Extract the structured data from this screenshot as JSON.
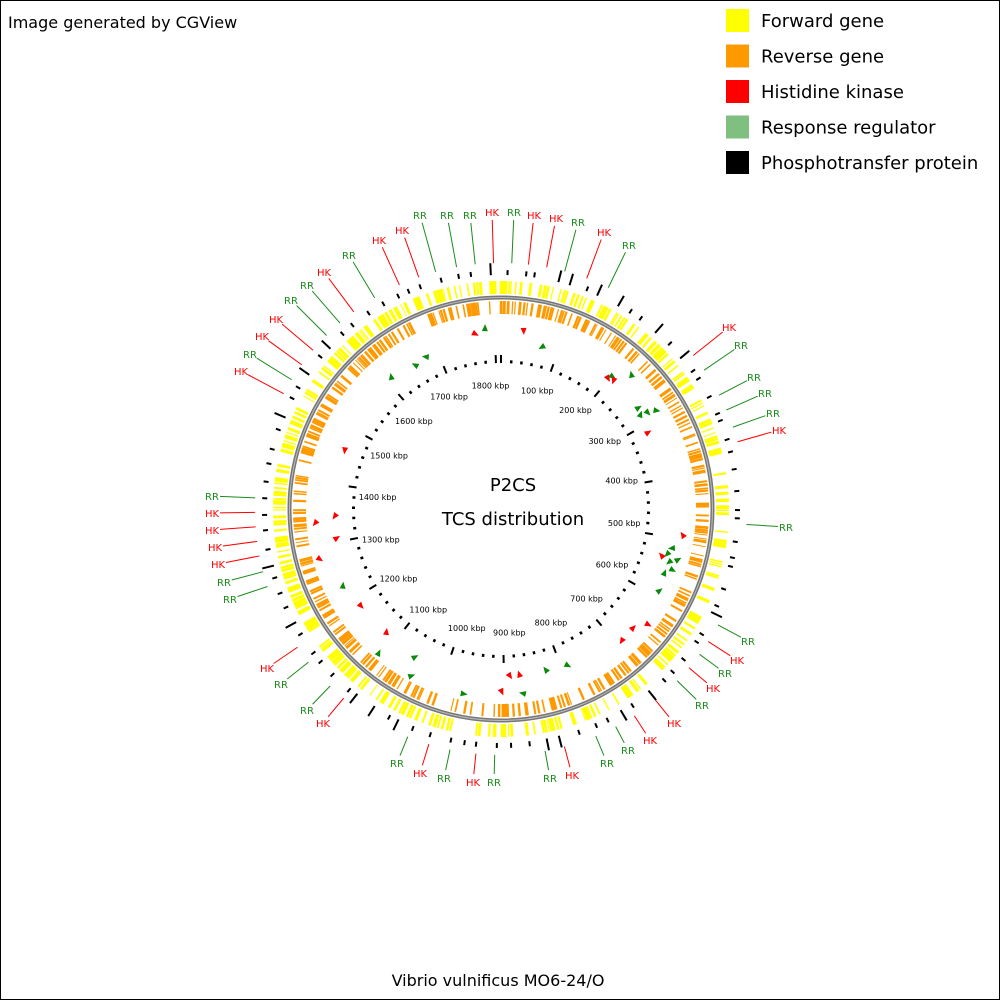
{
  "header": {
    "text": "Image generated by CGView"
  },
  "legend": [
    {
      "label": "Forward gene",
      "color": "#ffff00"
    },
    {
      "label": "Reverse gene",
      "color": "#ff9900"
    },
    {
      "label": "Histidine kinase",
      "color": "#ff0000"
    },
    {
      "label": "Response regulator",
      "color": "#7fbf7f"
    },
    {
      "label": "Phosphotransfer protein",
      "color": "#000000"
    }
  ],
  "center": {
    "title": "P2CS",
    "subtitle": "TCS distribution"
  },
  "ruler": [
    "100 kbp",
    "200 kbp",
    "300 kbp",
    "400 kbp",
    "500 kbp",
    "600 kbp",
    "700 kbp",
    "800 kbp",
    "900 kbp",
    "1000 kbp",
    "1100 kbp",
    "1200 kbp",
    "1300 kbp",
    "1400 kbp",
    "1500 kbp",
    "1600 kbp",
    "1700 kbp",
    "1800 kbp"
  ],
  "features": [
    {
      "text": "RR",
      "color": "#1a8c1a"
    },
    {
      "text": "RR",
      "color": "#1a8c1a"
    },
    {
      "text": "RR",
      "color": "#1a8c1a"
    },
    {
      "text": "HK",
      "color": "#ff0000"
    },
    {
      "text": "RR",
      "color": "#1a8c1a"
    },
    {
      "text": "HK",
      "color": "#ff0000"
    },
    {
      "text": "HK",
      "color": "#ff0000"
    },
    {
      "text": "RR",
      "color": "#1a8c1a"
    },
    {
      "text": "HK",
      "color": "#ff0000"
    },
    {
      "text": "RR",
      "color": "#1a8c1a"
    },
    {
      "text": "HK",
      "color": "#ff0000"
    },
    {
      "text": "HK",
      "color": "#ff0000"
    },
    {
      "text": "RR",
      "color": "#1a8c1a"
    },
    {
      "text": "HK",
      "color": "#ff0000"
    },
    {
      "text": "RR",
      "color": "#1a8c1a"
    },
    {
      "text": "RR",
      "color": "#1a8c1a"
    },
    {
      "text": "HK",
      "color": "#ff0000"
    },
    {
      "text": "HK",
      "color": "#ff0000"
    },
    {
      "text": "RR",
      "color": "#1a8c1a"
    },
    {
      "text": "HK",
      "color": "#ff0000"
    },
    {
      "text": "HK",
      "color": "#ff0000"
    },
    {
      "text": "RR",
      "color": "#1a8c1a"
    },
    {
      "text": "RR",
      "color": "#1a8c1a"
    },
    {
      "text": "RR",
      "color": "#1a8c1a"
    },
    {
      "text": "RR",
      "color": "#1a8c1a"
    },
    {
      "text": "HK",
      "color": "#ff0000"
    },
    {
      "text": "RR",
      "color": "#1a8c1a"
    },
    {
      "text": "RR",
      "color": "#1a8c1a"
    },
    {
      "text": "HK",
      "color": "#ff0000"
    },
    {
      "text": "RR",
      "color": "#1a8c1a"
    },
    {
      "text": "HK",
      "color": "#ff0000"
    },
    {
      "text": "RR",
      "color": "#1a8c1a"
    },
    {
      "text": "HK",
      "color": "#ff0000"
    },
    {
      "text": "HK",
      "color": "#ff0000"
    },
    {
      "text": "RR",
      "color": "#1a8c1a"
    },
    {
      "text": "RR",
      "color": "#1a8c1a"
    },
    {
      "text": "HK",
      "color": "#ff0000"
    },
    {
      "text": "RR",
      "color": "#1a8c1a"
    },
    {
      "text": "RR",
      "color": "#1a8c1a"
    },
    {
      "text": "HK",
      "color": "#ff0000"
    },
    {
      "text": "RR",
      "color": "#1a8c1a"
    },
    {
      "text": "HK",
      "color": "#ff0000"
    },
    {
      "text": "RR",
      "color": "#1a8c1a"
    },
    {
      "text": "HK",
      "color": "#ff0000"
    },
    {
      "text": "RR",
      "color": "#1a8c1a"
    },
    {
      "text": "RR",
      "color": "#1a8c1a"
    },
    {
      "text": "HK",
      "color": "#ff0000"
    },
    {
      "text": "RR",
      "color": "#1a8c1a"
    },
    {
      "text": "HK",
      "color": "#ff0000"
    },
    {
      "text": "HK",
      "color": "#ff0000"
    },
    {
      "text": "HK",
      "color": "#ff0000"
    },
    {
      "text": "HK",
      "color": "#ff0000"
    },
    {
      "text": "RR",
      "color": "#1a8c1a"
    },
    {
      "text": "RR",
      "color": "#1a8c1a"
    }
  ],
  "footer": "Vibrio vulnificus MO6-24/O"
}
